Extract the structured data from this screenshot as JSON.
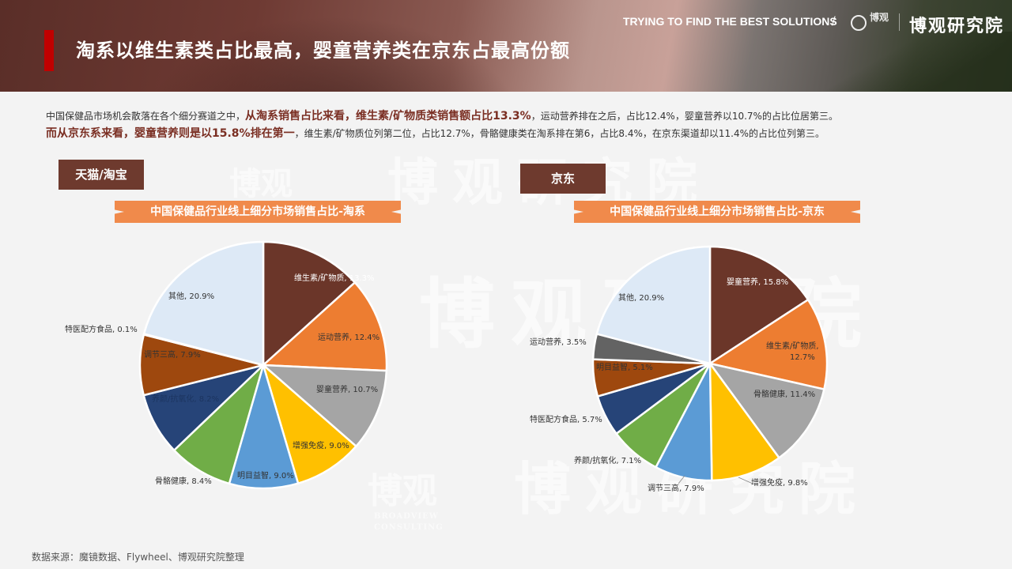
{
  "header": {
    "title": "淘系以维生素类占比最高，婴童营养类在京东占最高份额",
    "slogan": "TRYING TO FIND THE BEST SOLUTIONS",
    "slash": "/",
    "logo_small": "博观",
    "brand": "博观研究院",
    "accent_color": "#c00000"
  },
  "intro": {
    "line1_plain1": "中国保健品市场机会散落在各个细分赛道之中，",
    "line1_bold": "从淘系销售占比来看，维生素/矿物质类销售额占比13.3%",
    "line1_plain2": "，运动营养排在之后，占比12.4%，婴童营养以10.7%的占比位居第三。",
    "line2_plain1": "而",
    "line2_bold": "从京东系来看，婴童营养则是以15.8%排在第一",
    "line2_plain2": "，维生素/矿物质位列第二位，占比12.7%，骨骼健康类在淘系排在第6，占比8.4%，在京东渠道却以11.4%的占比位列第三。"
  },
  "watermark": {
    "text": "博观研究院",
    "small": "博观",
    "sub1": "BROADVIEW",
    "sub2": "CONSULTING"
  },
  "panels": {
    "taobao_tag": "天猫/淘宝",
    "jd_tag": "京东"
  },
  "chart_data": [
    {
      "type": "pie",
      "title": "中国保健品行业线上细分市场销售占比-淘系",
      "start_angle": "12 o'clock, clockwise",
      "categories": [
        "维生素/矿物质",
        "运动营养",
        "婴童营养",
        "增强免疫",
        "明目益智",
        "骨骼健康",
        "养颜/抗氧化",
        "调节三高",
        "特医配方食品",
        "其他"
      ],
      "values": [
        13.3,
        12.4,
        10.7,
        9.0,
        9.0,
        8.4,
        8.2,
        7.9,
        0.1,
        20.9
      ],
      "colors": [
        "#6b3629",
        "#ed7d31",
        "#a5a5a5",
        "#ffc000",
        "#5b9bd5",
        "#70ad47",
        "#264478",
        "#9e480e",
        "#636363",
        "#dde9f6"
      ],
      "labels": [
        "维生素/矿物质, 13.3%",
        "运动营养, 12.4%",
        "婴童营养, 10.7%",
        "增强免疫, 9.0%",
        "明目益智, 9.0%",
        "骨骼健康, 8.4%",
        "养颜/抗氧化, 8.2%",
        "调节三高, 7.9%",
        "特医配方食品, 0.1%",
        "其他, 20.9%"
      ],
      "unit": "%"
    },
    {
      "type": "pie",
      "title": "中国保健品行业线上细分市场销售占比-京东",
      "start_angle": "12 o'clock, clockwise",
      "categories": [
        "婴童营养",
        "维生素/矿物质",
        "骨骼健康",
        "增强免疫",
        "调节三高",
        "养颜/抗氧化",
        "特医配方食品",
        "明目益智",
        "运动营养",
        "其他"
      ],
      "values": [
        15.8,
        12.7,
        11.4,
        9.8,
        7.9,
        7.1,
        5.7,
        5.1,
        3.5,
        20.9
      ],
      "colors": [
        "#6b3629",
        "#ed7d31",
        "#a5a5a5",
        "#ffc000",
        "#5b9bd5",
        "#70ad47",
        "#264478",
        "#9e480e",
        "#636363",
        "#dde9f6"
      ],
      "labels": [
        "婴童营养, 15.8%",
        "维生素/矿物质,\n12.7%",
        "骨骼健康, 11.4%",
        "增强免疫, 9.8%",
        "调节三高, 7.9%",
        "养颜/抗氧化, 7.1%",
        "特医配方食品, 5.7%",
        "明目益智, 5.1%",
        "运动营养, 3.5%",
        "其他, 20.9%"
      ],
      "unit": "%"
    }
  ],
  "source": "数据来源：魔镜数据、Flywheel、博观研究院整理"
}
